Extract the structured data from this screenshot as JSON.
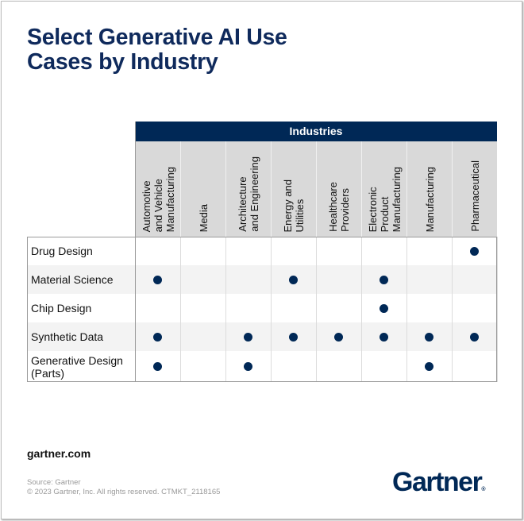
{
  "title_lines": [
    "Select Generative AI Use",
    "Cases by Industry"
  ],
  "chart_data": {
    "type": "table",
    "header": "Industries",
    "columns": [
      "Automotive\nand Vehicle\nManufacturing",
      "Media",
      "Architecture\nand Engineering",
      "Energy and\nUtilities",
      "Healthcare\nProviders",
      "Electronic\nProduct\nManufacturing",
      "Manufacturing",
      "Pharmaceutical"
    ],
    "rows": [
      {
        "label": "Drug Design",
        "values": [
          0,
          0,
          0,
          0,
          0,
          0,
          0,
          1
        ]
      },
      {
        "label": "Material Science",
        "values": [
          1,
          0,
          0,
          1,
          0,
          1,
          0,
          0
        ]
      },
      {
        "label": "Chip Design",
        "values": [
          0,
          0,
          0,
          0,
          0,
          1,
          0,
          0
        ]
      },
      {
        "label": "Synthetic Data",
        "values": [
          1,
          0,
          1,
          1,
          1,
          1,
          1,
          1
        ]
      },
      {
        "label": "Generative Design\n(Parts)",
        "values": [
          1,
          0,
          1,
          0,
          0,
          0,
          1,
          0
        ]
      }
    ],
    "marker_color": "#002856"
  },
  "footer": {
    "site": "gartner.com",
    "source": "Source: Gartner",
    "copyright": "© 2023 Gartner, Inc. All rights reserved. CTMKT_2118165",
    "logo": "Gartner"
  }
}
